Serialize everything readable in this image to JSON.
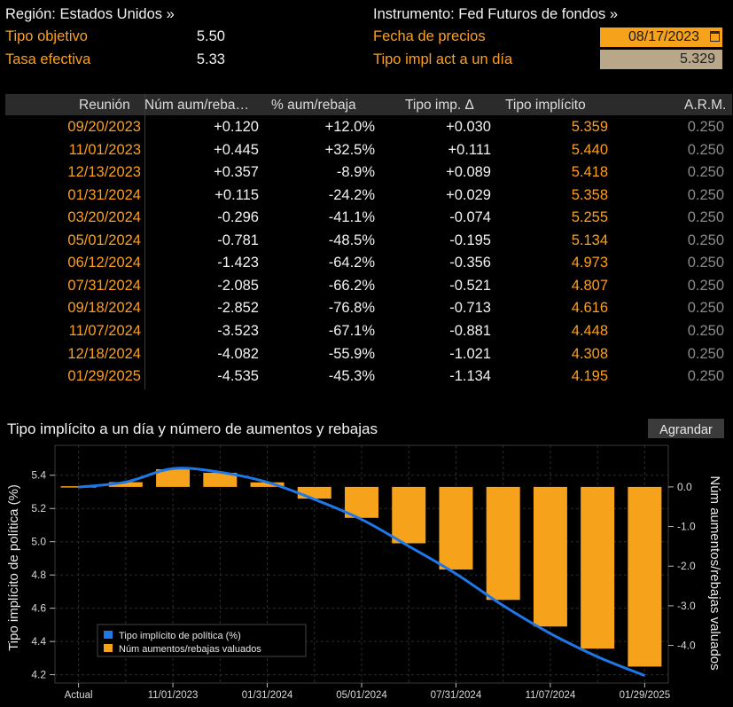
{
  "header": {
    "region_label": "Región: Estados Unidos »",
    "instrument_label": "Instrumento: Fed Futuros de fondos »",
    "target_label": "Tipo objetivo",
    "target_value": "5.50",
    "effective_label": "Tasa efectiva",
    "effective_value": "5.33",
    "price_date_label": "Fecha de precios",
    "price_date_value": "08/17/2023",
    "overnight_label": "Tipo impl act a un día",
    "overnight_value": "5.329"
  },
  "table": {
    "columns": [
      "Reunión",
      "Núm aum/reba…",
      "% aum/rebaja",
      "Tipo imp. Δ",
      "Tipo implícito",
      "A.R.M."
    ],
    "rows": [
      [
        "09/20/2023",
        "+0.120",
        "+12.0%",
        "+0.030",
        "5.359",
        "0.250"
      ],
      [
        "11/01/2023",
        "+0.445",
        "+32.5%",
        "+0.111",
        "5.440",
        "0.250"
      ],
      [
        "12/13/2023",
        "+0.357",
        "-8.9%",
        "+0.089",
        "5.418",
        "0.250"
      ],
      [
        "01/31/2024",
        "+0.115",
        "-24.2%",
        "+0.029",
        "5.358",
        "0.250"
      ],
      [
        "03/20/2024",
        "-0.296",
        "-41.1%",
        "-0.074",
        "5.255",
        "0.250"
      ],
      [
        "05/01/2024",
        "-0.781",
        "-48.5%",
        "-0.195",
        "5.134",
        "0.250"
      ],
      [
        "06/12/2024",
        "-1.423",
        "-64.2%",
        "-0.356",
        "4.973",
        "0.250"
      ],
      [
        "07/31/2024",
        "-2.085",
        "-66.2%",
        "-0.521",
        "4.807",
        "0.250"
      ],
      [
        "09/18/2024",
        "-2.852",
        "-76.8%",
        "-0.713",
        "4.616",
        "0.250"
      ],
      [
        "11/07/2024",
        "-3.523",
        "-67.1%",
        "-0.881",
        "4.448",
        "0.250"
      ],
      [
        "12/18/2024",
        "-4.082",
        "-55.9%",
        "-1.021",
        "4.308",
        "0.250"
      ],
      [
        "01/29/2025",
        "-4.535",
        "-45.3%",
        "-1.134",
        "4.195",
        "0.250"
      ]
    ]
  },
  "chart_title": "Tipo implícito a un día y número de aumentos y rebajas",
  "enlarge_label": "Agrandar",
  "colors": {
    "line": "#1f78e8",
    "bars": "#f7a21b",
    "orange_text": "#ff9f1a"
  },
  "chart_data": {
    "type": "bar+line",
    "categories": [
      "Actual",
      "09/20/2023",
      "11/01/2023",
      "12/13/2023",
      "01/31/2024",
      "03/20/2024",
      "05/01/2024",
      "06/12/2024",
      "07/31/2024",
      "09/18/2024",
      "11/07/2024",
      "12/18/2024",
      "01/29/2025"
    ],
    "x_tick_labels": [
      "Actual",
      "11/01/2023",
      "01/31/2024",
      "05/01/2024",
      "07/31/2024",
      "11/07/2024",
      "01/29/2025"
    ],
    "series": [
      {
        "name": "Tipo implícito de política (%)",
        "type": "line",
        "axis": "left",
        "values": [
          5.329,
          5.359,
          5.44,
          5.418,
          5.358,
          5.255,
          5.134,
          4.973,
          4.807,
          4.616,
          4.448,
          4.308,
          4.195
        ]
      },
      {
        "name": "Núm aumentos/rebajas valuados",
        "type": "bar",
        "axis": "right",
        "values": [
          0,
          0.12,
          0.445,
          0.357,
          0.115,
          -0.296,
          -0.781,
          -1.423,
          -2.085,
          -2.852,
          -3.523,
          -4.082,
          -4.535
        ]
      }
    ],
    "ylabel_left": "Tipo implícito de política (%)",
    "ylabel_right": "Núm aumentos/rebajas valuados",
    "left_ticks": [
      "5.4",
      "5.2",
      "5.0",
      "4.8",
      "4.6",
      "4.4",
      "4.2"
    ],
    "right_ticks": [
      "0.0",
      "-1.0",
      "-2.0",
      "-3.0",
      "-4.0"
    ],
    "ylim_left": [
      4.15,
      5.58
    ],
    "ylim_right": [
      -4.95,
      1.05
    ],
    "grid": true,
    "legend_position": "bottom-left"
  }
}
